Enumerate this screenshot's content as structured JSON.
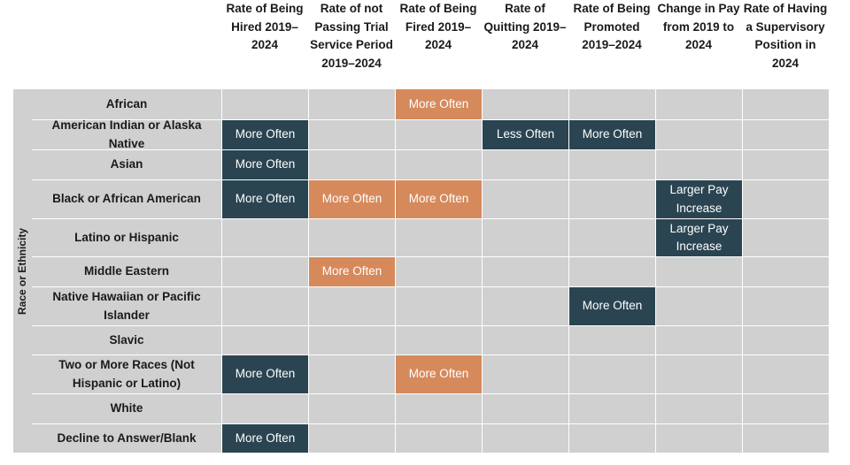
{
  "chart_data": {
    "type": "table",
    "y_axis_label": "Race or Ethnicity",
    "columns": [
      "Rate of Being Hired 2019–2024",
      "Rate of not Passing Trial Service Period 2019–2024",
      "Rate of Being Fired 2019–2024",
      "Rate of Quitting 2019–2024",
      "Rate of Being Promoted 2019–2024",
      "Change in Pay from 2019 to 2024",
      "Rate of Having a Supervisory Position in 2024"
    ],
    "rows": [
      {
        "label": "African",
        "cells": [
          "",
          "",
          "More Often",
          "",
          "",
          "",
          ""
        ]
      },
      {
        "label": "American Indian or Alaska Native",
        "cells": [
          "More Often",
          "",
          "",
          "Less Often",
          "More Often",
          "",
          ""
        ]
      },
      {
        "label": "Asian",
        "cells": [
          "More Often",
          "",
          "",
          "",
          "",
          "",
          ""
        ]
      },
      {
        "label": "Black or African American",
        "cells": [
          "More Often",
          "More Often",
          "More Often",
          "",
          "",
          "Larger Pay Increase",
          ""
        ]
      },
      {
        "label": "Latino or Hispanic",
        "cells": [
          "",
          "",
          "",
          "",
          "",
          "Larger Pay Increase",
          ""
        ]
      },
      {
        "label": "Middle Eastern",
        "cells": [
          "",
          "More Often",
          "",
          "",
          "",
          "",
          ""
        ]
      },
      {
        "label": "Native Hawaiian or Pacific Islander",
        "cells": [
          "",
          "",
          "",
          "",
          "More Often",
          "",
          ""
        ]
      },
      {
        "label": "Slavic",
        "cells": [
          "",
          "",
          "",
          "",
          "",
          "",
          ""
        ]
      },
      {
        "label": "Two or More Races (Not Hispanic or Latino)",
        "cells": [
          "More Often",
          "",
          "More Often",
          "",
          "",
          "",
          ""
        ]
      },
      {
        "label": "White",
        "cells": [
          "",
          "",
          "",
          "",
          "",
          "",
          ""
        ]
      },
      {
        "label": "Decline to Answer/Blank",
        "cells": [
          "More Often",
          "",
          "",
          "",
          "",
          "",
          ""
        ]
      }
    ],
    "column_favorability": [
      "favorable",
      "unfavorable",
      "unfavorable",
      "favorable",
      "favorable",
      "favorable",
      "favorable"
    ],
    "colors": {
      "favorable": "#2b4451",
      "unfavorable": "#d68a5c",
      "empty": "#d0d0d0",
      "grid": "#ffffff"
    }
  }
}
